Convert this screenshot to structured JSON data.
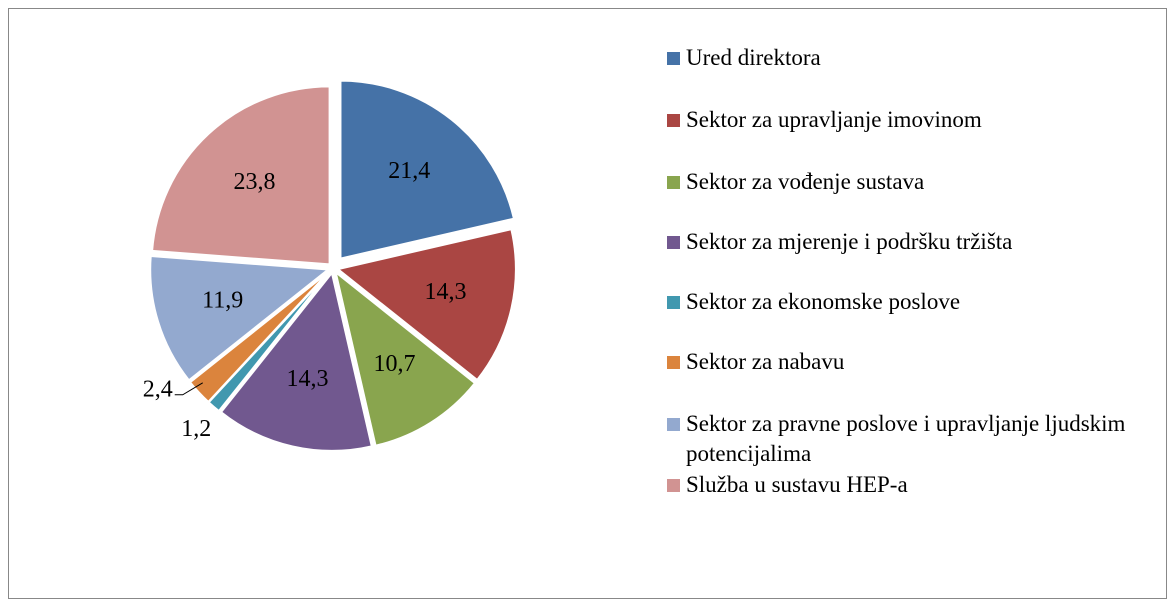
{
  "chart_data": {
    "type": "pie",
    "categories": [
      "Ured direktora",
      "Sektor za upravljanje imovinom",
      "Sektor za vođenje sustava",
      "Sektor za mjerenje i podršku tržišta",
      "Sektor za ekonomske poslove",
      "Sektor za nabavu",
      "Sektor za pravne poslove i upravljanje ljudskim potencijalima",
      "Služba u sustavu HEP-a"
    ],
    "values": [
      21.4,
      14.3,
      10.7,
      14.3,
      1.2,
      2.4,
      11.9,
      23.8
    ],
    "value_labels": [
      "21,4",
      "14,3",
      "10,7",
      "14,3",
      "1,2",
      "2,4",
      "11,9",
      "23,8"
    ],
    "colors": [
      "#4572a7",
      "#aa4643",
      "#89a54e",
      "#71588f",
      "#4198af",
      "#db843d",
      "#93a9cf",
      "#d19392"
    ],
    "legend": "right"
  }
}
